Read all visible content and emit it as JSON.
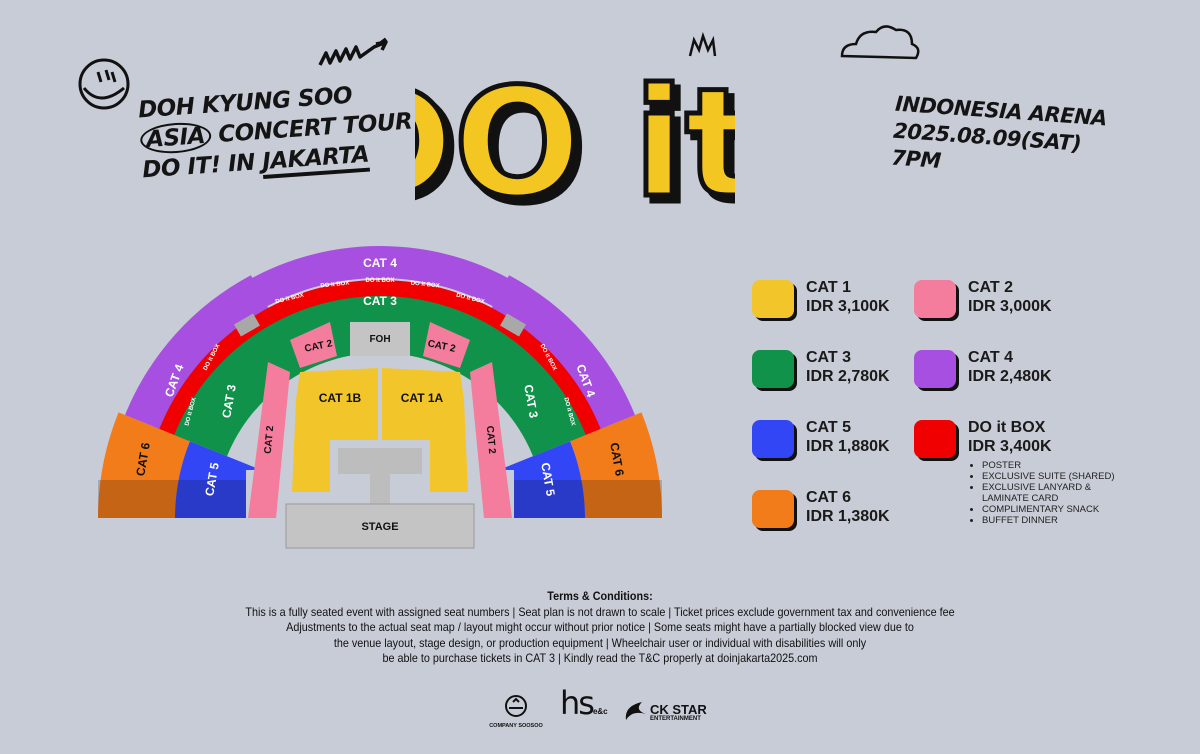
{
  "header": {
    "tour_lines": [
      "DOH KYUNG SOO",
      "ASIA",
      "CONCERT TOUR",
      "DO IT! IN ",
      "JAKARTA"
    ],
    "logo_text": "DO it!",
    "venue": "INDONESIA ARENA",
    "date": "2025.08.09(SAT)",
    "time": "7PM"
  },
  "map": {
    "cat4": "CAT 4",
    "cat3": "CAT 3",
    "cat2": "CAT 2",
    "cat5": "CAT 5",
    "cat6": "CAT 6",
    "cat1a": "CAT 1A",
    "cat1b": "CAT 1B",
    "box": "DO it BOX",
    "foh": "FOH",
    "stage": "STAGE",
    "wheelchair_icon": "wheelchair-icon"
  },
  "legend": [
    {
      "name": "CAT 1",
      "price": "IDR 3,100K",
      "color": "#f2c62a"
    },
    {
      "name": "CAT 2",
      "price": "IDR 3,000K",
      "color": "#f47c9c"
    },
    {
      "name": "CAT 3",
      "price": "IDR 2,780K",
      "color": "#10924a"
    },
    {
      "name": "CAT 4",
      "price": "IDR 2,480K",
      "color": "#a64fe0"
    },
    {
      "name": "CAT 5",
      "price": "IDR 1,880K",
      "color": "#3346f5"
    },
    {
      "name": "DO it BOX",
      "price": "IDR 3,400K",
      "color": "#f00000"
    },
    {
      "name": "CAT 6",
      "price": "IDR 1,380K",
      "color": "#f27b1a"
    }
  ],
  "box_perks": [
    "POSTER",
    "EXCLUSIVE SUITE (SHARED)",
    "EXCLUSIVE LANYARD & LAMINATE CARD",
    "COMPLIMENTARY SNACK",
    "BUFFET DINNER"
  ],
  "terms": {
    "heading": "Terms & Conditions:",
    "lines": [
      "This is a fully seated event with assigned seat numbers | Seat plan is not drawn to scale | Ticket prices exclude government tax and convenience fee",
      "Adjustments to the actual seat map / layout might occur without prior notice | Some seats might have a partially blocked view due to",
      "the venue layout, stage design, or production equipment | Wheelchair user or individual with disabilities will only",
      "be able to purchase tickets in CAT 3 | Kindly read the T&C properly at doinjakarta2025.com"
    ]
  },
  "sponsors": [
    "COMPANY SOOSOO",
    "hs",
    "e&c",
    "CK STAR",
    "ENTERTAINMENT"
  ]
}
